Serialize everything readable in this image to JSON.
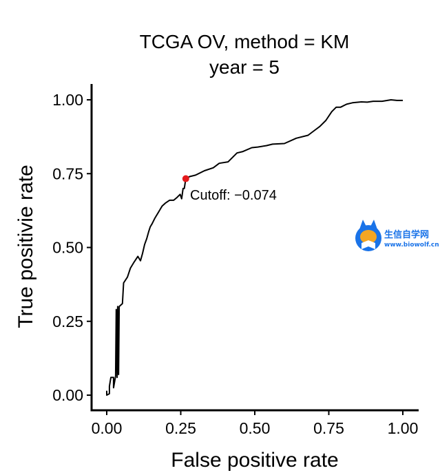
{
  "chart_data": {
    "type": "line",
    "title_line1": "TCGA OV, method = KM",
    "title_line2": "year = 5",
    "xlabel": "False positive rate",
    "ylabel": "True positivie rate",
    "xlim": [
      0,
      1
    ],
    "ylim": [
      0,
      1
    ],
    "xticks": [
      {
        "value": 0,
        "label": "0.00"
      },
      {
        "value": 0.25,
        "label": "0.25"
      },
      {
        "value": 0.5,
        "label": "0.50"
      },
      {
        "value": 0.75,
        "label": "0.75"
      },
      {
        "value": 1,
        "label": "1.00"
      }
    ],
    "yticks": [
      {
        "value": 0,
        "label": "0.00"
      },
      {
        "value": 0.25,
        "label": "0.25"
      },
      {
        "value": 0.5,
        "label": "0.50"
      },
      {
        "value": 0.75,
        "label": "0.75"
      },
      {
        "value": 1,
        "label": "1.00"
      }
    ],
    "grid": false,
    "series": [
      {
        "color": "#000000",
        "points": [
          [
            0.0,
            0.015
          ],
          [
            0.0,
            0.0
          ],
          [
            0.009,
            0.005
          ],
          [
            0.009,
            0.03
          ],
          [
            0.014,
            0.06
          ],
          [
            0.023,
            0.06
          ],
          [
            0.023,
            0.025
          ],
          [
            0.03,
            0.065
          ],
          [
            0.032,
            0.29
          ],
          [
            0.035,
            0.06
          ],
          [
            0.037,
            0.3
          ],
          [
            0.04,
            0.07
          ],
          [
            0.042,
            0.3
          ],
          [
            0.053,
            0.31
          ],
          [
            0.057,
            0.38
          ],
          [
            0.07,
            0.4
          ],
          [
            0.08,
            0.43
          ],
          [
            0.092,
            0.45
          ],
          [
            0.105,
            0.47
          ],
          [
            0.114,
            0.455
          ],
          [
            0.121,
            0.48
          ],
          [
            0.128,
            0.51
          ],
          [
            0.135,
            0.53
          ],
          [
            0.142,
            0.555
          ],
          [
            0.147,
            0.57
          ],
          [
            0.153,
            0.58
          ],
          [
            0.163,
            0.6
          ],
          [
            0.175,
            0.62
          ],
          [
            0.187,
            0.64
          ],
          [
            0.198,
            0.65
          ],
          [
            0.212,
            0.66
          ],
          [
            0.226,
            0.66
          ],
          [
            0.238,
            0.67
          ],
          [
            0.248,
            0.68
          ],
          [
            0.253,
            0.665
          ],
          [
            0.258,
            0.7
          ],
          [
            0.262,
            0.7
          ],
          [
            0.267,
            0.733
          ],
          [
            0.28,
            0.74
          ],
          [
            0.3,
            0.745
          ],
          [
            0.33,
            0.76
          ],
          [
            0.36,
            0.77
          ],
          [
            0.38,
            0.785
          ],
          [
            0.41,
            0.79
          ],
          [
            0.44,
            0.82
          ],
          [
            0.46,
            0.825
          ],
          [
            0.49,
            0.838
          ],
          [
            0.51,
            0.84
          ],
          [
            0.54,
            0.845
          ],
          [
            0.56,
            0.85
          ],
          [
            0.6,
            0.852
          ],
          [
            0.64,
            0.87
          ],
          [
            0.68,
            0.88
          ],
          [
            0.7,
            0.895
          ],
          [
            0.72,
            0.91
          ],
          [
            0.74,
            0.93
          ],
          [
            0.76,
            0.96
          ],
          [
            0.775,
            0.975
          ],
          [
            0.79,
            0.975
          ],
          [
            0.81,
            0.985
          ],
          [
            0.83,
            0.99
          ],
          [
            0.86,
            0.993
          ],
          [
            0.88,
            0.992
          ],
          [
            0.9,
            0.995
          ],
          [
            0.93,
            0.995
          ],
          [
            0.96,
            1.0
          ],
          [
            0.98,
            0.998
          ],
          [
            1.0,
            0.998
          ]
        ]
      }
    ],
    "cutoff_point": {
      "x": 0.267,
      "y": 0.733,
      "color": "#e41a1c",
      "label": "Cutoff: −0.074"
    }
  },
  "watermark": {
    "text_cn": "生信自学网",
    "url": "www.biowolf.cn",
    "icon": "fox-reading-logo-icon",
    "accent_color": "#1a73e8"
  }
}
